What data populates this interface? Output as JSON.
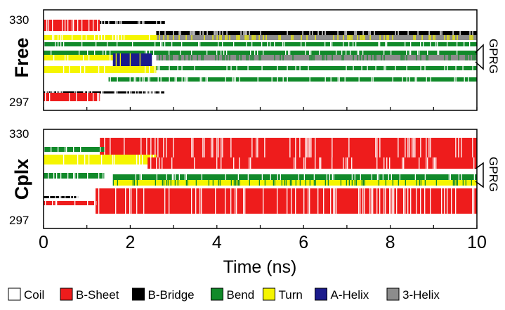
{
  "chart_data": [
    {
      "type": "heatmap",
      "panel_label": "Free",
      "ytick_labels": [
        "330",
        "297"
      ],
      "side_label": "GPRG",
      "x_range": [
        0,
        10
      ],
      "y_range": [
        297,
        330
      ]
    },
    {
      "type": "heatmap",
      "panel_label": "Cplx",
      "ytick_labels": [
        "330",
        "297"
      ],
      "side_label": "GPRG",
      "x_range": [
        0,
        10
      ],
      "y_range": [
        297,
        330
      ]
    }
  ],
  "x_axis": {
    "ticks": [
      "0",
      "2",
      "4",
      "6",
      "8",
      "10"
    ],
    "label": "Time (ns)"
  },
  "legend": [
    {
      "label": "Coil",
      "color": "#ffffff"
    },
    {
      "label": "B-Sheet",
      "color": "#ee1c1c"
    },
    {
      "label": "B-Bridge",
      "color": "#000000"
    },
    {
      "label": "Bend",
      "color": "#118a2a"
    },
    {
      "label": "Turn",
      "color": "#f5f500"
    },
    {
      "label": "A-Helix",
      "color": "#1b1b8c"
    },
    {
      "label": "3-Helix",
      "color": "#8c8c8c"
    }
  ]
}
